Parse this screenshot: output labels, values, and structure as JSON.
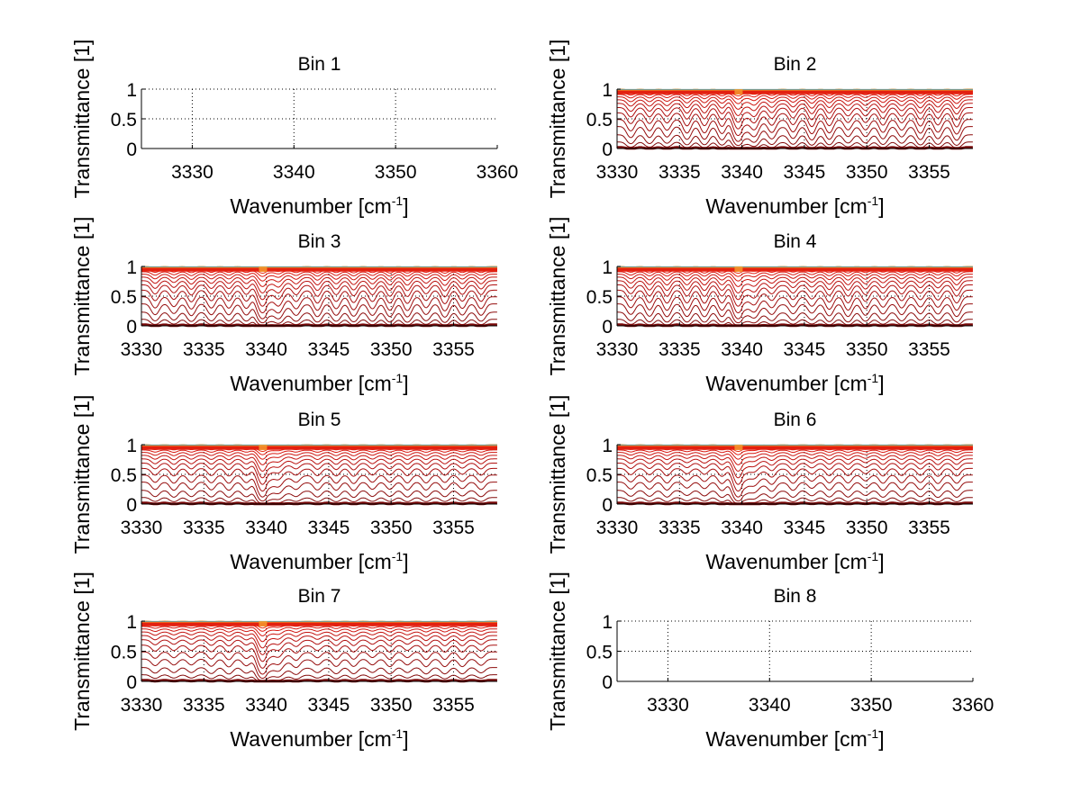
{
  "chart_data": [
    {
      "type": "line",
      "title": "Bin 1",
      "xlabel": "Wavenumber [cm",
      "xlabel_superscript": "-1",
      "xlabel_suffix": "]",
      "ylabel": "Transmittance [1]",
      "xlim": [
        3325,
        3360
      ],
      "ylim": [
        0,
        1
      ],
      "xticks": [
        3330,
        3340,
        3350,
        3360
      ],
      "yticks": [
        0,
        0.5,
        1
      ],
      "ytick_labels": [
        "0",
        "0.5",
        "1"
      ],
      "grid": true,
      "empty": true
    },
    {
      "type": "line",
      "title": "Bin 2",
      "xlabel": "Wavenumber [cm",
      "xlabel_superscript": "-1",
      "xlabel_suffix": "]",
      "ylabel": "Transmittance [1]",
      "xlim": [
        3330,
        3358.5
      ],
      "ylim": [
        0,
        1
      ],
      "xticks": [
        3330,
        3335,
        3340,
        3345,
        3350,
        3355
      ],
      "yticks": [
        0,
        0.5,
        1
      ],
      "ytick_labels": [
        "0",
        "0.5",
        "1"
      ],
      "grid": true,
      "empty": false,
      "absorption_lines": [
        3331.1,
        3332.6,
        3334.0,
        3335.6,
        3337.0,
        3338.4,
        3339.7,
        3341.0,
        3342.4,
        3344.1,
        3345.6,
        3347.0,
        3348.5,
        3349.9,
        3351.3,
        3352.8,
        3354.3,
        3355.7,
        3357.2
      ],
      "strong_line": 3339.7,
      "series_baselines": [
        1.0,
        0.99,
        0.98,
        0.96,
        0.94,
        0.91,
        0.87,
        0.82,
        0.76,
        0.69,
        0.6,
        0.49,
        0.37,
        0.23,
        0.11,
        0.02
      ],
      "line_strength": 1.0
    },
    {
      "type": "line",
      "title": "Bin 3",
      "xlabel": "Wavenumber [cm",
      "xlabel_superscript": "-1",
      "xlabel_suffix": "]",
      "ylabel": "Transmittance [1]",
      "xlim": [
        3330,
        3358.5
      ],
      "ylim": [
        0,
        1
      ],
      "xticks": [
        3330,
        3335,
        3340,
        3345,
        3350,
        3355
      ],
      "yticks": [
        0,
        0.5,
        1
      ],
      "ytick_labels": [
        "0",
        "0.5",
        "1"
      ],
      "grid": true,
      "empty": false,
      "absorption_lines": [
        3331.1,
        3332.6,
        3334.0,
        3335.6,
        3337.0,
        3338.4,
        3339.7,
        3341.0,
        3342.4,
        3344.1,
        3345.6,
        3347.0,
        3348.5,
        3349.9,
        3351.3,
        3352.8,
        3354.3,
        3355.7,
        3357.2
      ],
      "strong_line": 3339.7,
      "series_baselines": [
        1.0,
        0.99,
        0.98,
        0.96,
        0.94,
        0.91,
        0.87,
        0.82,
        0.76,
        0.69,
        0.6,
        0.49,
        0.37,
        0.23,
        0.11,
        0.02
      ],
      "line_strength": 0.95
    },
    {
      "type": "line",
      "title": "Bin 4",
      "xlabel": "Wavenumber [cm",
      "xlabel_superscript": "-1",
      "xlabel_suffix": "]",
      "ylabel": "Transmittance [1]",
      "xlim": [
        3330,
        3358.5
      ],
      "ylim": [
        0,
        1
      ],
      "xticks": [
        3330,
        3335,
        3340,
        3345,
        3350,
        3355
      ],
      "yticks": [
        0,
        0.5,
        1
      ],
      "ytick_labels": [
        "0",
        "0.5",
        "1"
      ],
      "grid": true,
      "empty": false,
      "absorption_lines": [
        3331.1,
        3332.6,
        3334.0,
        3335.6,
        3337.0,
        3338.4,
        3339.7,
        3341.0,
        3342.4,
        3344.1,
        3345.6,
        3347.0,
        3348.5,
        3349.9,
        3351.3,
        3352.8,
        3354.3,
        3355.7,
        3357.2
      ],
      "strong_line": 3339.7,
      "series_baselines": [
        1.0,
        0.99,
        0.98,
        0.96,
        0.94,
        0.91,
        0.87,
        0.82,
        0.76,
        0.69,
        0.6,
        0.49,
        0.37,
        0.23,
        0.11,
        0.02
      ],
      "line_strength": 0.9
    },
    {
      "type": "line",
      "title": "Bin 5",
      "xlabel": "Wavenumber [cm",
      "xlabel_superscript": "-1",
      "xlabel_suffix": "]",
      "ylabel": "Transmittance [1]",
      "xlim": [
        3330,
        3358.5
      ],
      "ylim": [
        0,
        1
      ],
      "xticks": [
        3330,
        3335,
        3340,
        3345,
        3350,
        3355
      ],
      "yticks": [
        0,
        0.5,
        1
      ],
      "ytick_labels": [
        "0",
        "0.5",
        "1"
      ],
      "grid": true,
      "empty": false,
      "absorption_lines": [
        3331.1,
        3332.6,
        3334.0,
        3335.6,
        3337.0,
        3338.4,
        3339.7,
        3341.0,
        3342.4,
        3344.1,
        3345.6,
        3347.0,
        3348.5,
        3349.9,
        3351.3,
        3352.8,
        3354.3,
        3355.7,
        3357.2
      ],
      "strong_line": 3339.7,
      "series_baselines": [
        1.0,
        0.99,
        0.98,
        0.96,
        0.94,
        0.91,
        0.87,
        0.82,
        0.76,
        0.69,
        0.6,
        0.49,
        0.37,
        0.23,
        0.11,
        0.02
      ],
      "line_strength": 0.55
    },
    {
      "type": "line",
      "title": "Bin 6",
      "xlabel": "Wavenumber [cm",
      "xlabel_superscript": "-1",
      "xlabel_suffix": "]",
      "ylabel": "Transmittance [1]",
      "xlim": [
        3330,
        3358.5
      ],
      "ylim": [
        0,
        1
      ],
      "xticks": [
        3330,
        3335,
        3340,
        3345,
        3350,
        3355
      ],
      "yticks": [
        0,
        0.5,
        1
      ],
      "ytick_labels": [
        "0",
        "0.5",
        "1"
      ],
      "grid": true,
      "empty": false,
      "absorption_lines": [
        3331.1,
        3332.6,
        3334.0,
        3335.6,
        3337.0,
        3338.4,
        3339.7,
        3341.0,
        3342.4,
        3344.1,
        3345.6,
        3347.0,
        3348.5,
        3349.9,
        3351.3,
        3352.8,
        3354.3,
        3355.7,
        3357.2
      ],
      "strong_line": 3339.7,
      "series_baselines": [
        1.0,
        0.99,
        0.98,
        0.96,
        0.94,
        0.91,
        0.87,
        0.82,
        0.76,
        0.69,
        0.6,
        0.49,
        0.37,
        0.23,
        0.11,
        0.02
      ],
      "line_strength": 0.5
    },
    {
      "type": "line",
      "title": "Bin 7",
      "xlabel": "Wavenumber [cm",
      "xlabel_superscript": "-1",
      "xlabel_suffix": "]",
      "ylabel": "Transmittance [1]",
      "xlim": [
        3330,
        3358.5
      ],
      "ylim": [
        0,
        1
      ],
      "xticks": [
        3330,
        3335,
        3340,
        3345,
        3350,
        3355
      ],
      "yticks": [
        0,
        0.5,
        1
      ],
      "ytick_labels": [
        "0",
        "0.5",
        "1"
      ],
      "grid": true,
      "empty": false,
      "absorption_lines": [
        3331.1,
        3332.6,
        3334.0,
        3335.6,
        3337.0,
        3338.4,
        3339.7,
        3341.0,
        3342.4,
        3344.1,
        3345.6,
        3347.0,
        3348.5,
        3349.9,
        3351.3,
        3352.8,
        3354.3,
        3355.7,
        3357.2
      ],
      "strong_line": 3339.7,
      "series_baselines": [
        1.0,
        0.99,
        0.98,
        0.96,
        0.94,
        0.91,
        0.87,
        0.82,
        0.76,
        0.69,
        0.6,
        0.49,
        0.37,
        0.23,
        0.11,
        0.02
      ],
      "line_strength": 0.45
    },
    {
      "type": "line",
      "title": "Bin 8",
      "xlabel": "Wavenumber [cm",
      "xlabel_superscript": "-1",
      "xlabel_suffix": "]",
      "ylabel": "Transmittance [1]",
      "xlim": [
        3325,
        3360
      ],
      "ylim": [
        0,
        1
      ],
      "xticks": [
        3330,
        3340,
        3350,
        3360
      ],
      "yticks": [
        0,
        0.5,
        1
      ],
      "ytick_labels": [
        "0",
        "0.5",
        "1"
      ],
      "grid": true,
      "empty": true
    }
  ],
  "colors": {
    "dark_red": "#7a0a0a",
    "red": "#e01010",
    "orange": "#f08020",
    "top_accent": "#6aa0a0",
    "axis": "#000000"
  }
}
